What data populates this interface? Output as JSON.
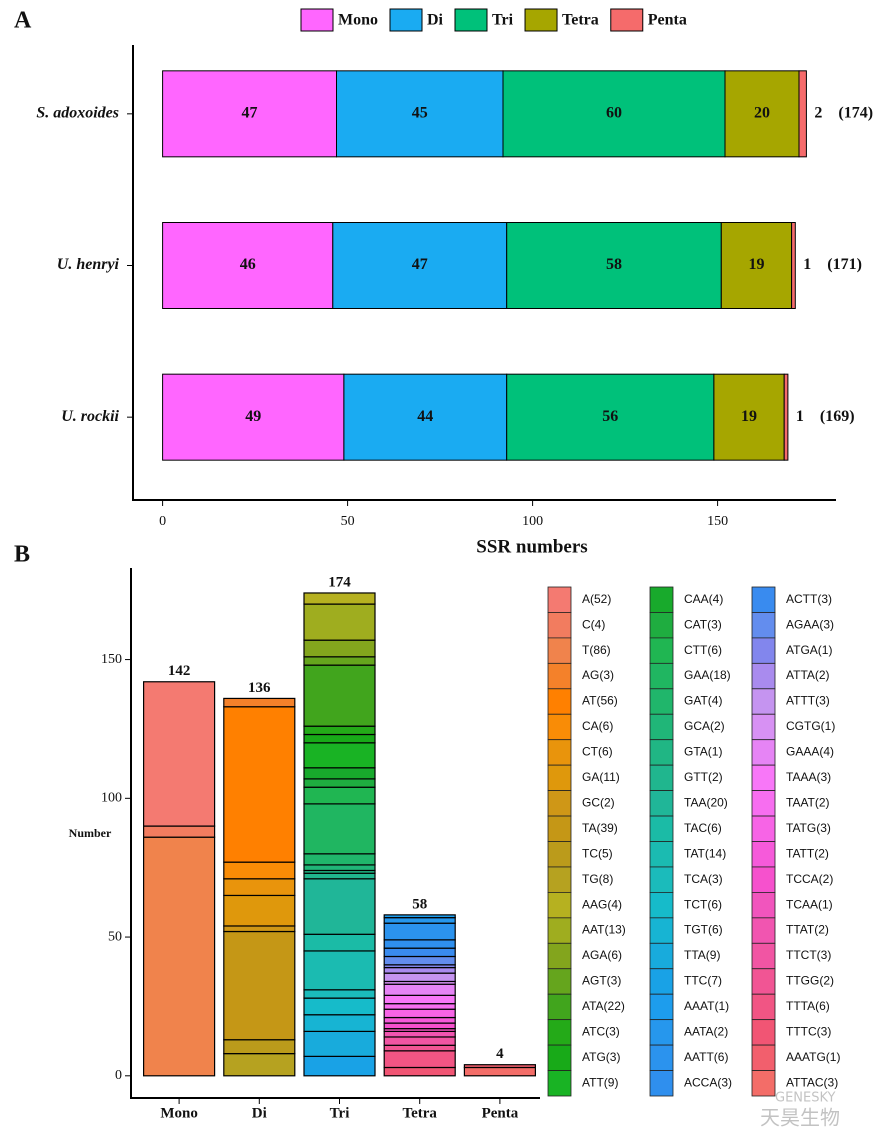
{
  "chart_data": [
    {
      "type": "stacked_barh",
      "panel": "A",
      "categories": [
        "S. adoxoides",
        "U. henryi",
        "U. rockii"
      ],
      "series": [
        {
          "name": "Mono",
          "color": "#ff66ff",
          "values": [
            47,
            46,
            49
          ]
        },
        {
          "name": "Di",
          "color": "#1aabf2",
          "values": [
            45,
            47,
            44
          ]
        },
        {
          "name": "Tri",
          "color": "#00c17a",
          "values": [
            60,
            58,
            56
          ]
        },
        {
          "name": "Tetra",
          "color": "#a6a600",
          "values": [
            20,
            19,
            19
          ]
        },
        {
          "name": "Penta",
          "color": "#f56b6b",
          "values": [
            2,
            1,
            1
          ]
        }
      ],
      "totals": [
        {
          "value": 174,
          "label": "(174)"
        },
        {
          "value": 171,
          "label": "(171)"
        },
        {
          "value": 169,
          "label": "(169)"
        }
      ],
      "xlabel": "SSR numbers",
      "xlim": [
        -8,
        182
      ],
      "xticks": [
        0,
        50,
        100,
        150
      ]
    },
    {
      "type": "stacked_bar",
      "panel": "B",
      "categories": [
        "Mono",
        "Di",
        "Tri",
        "Tetra",
        "Penta"
      ],
      "groups": [
        [
          {
            "label": "A(52)",
            "value": 52,
            "color": "hsl(4,85%,70%)"
          },
          {
            "label": "C(4)",
            "value": 4,
            "color": "hsl(12,85%,66%)"
          },
          {
            "label": "T(86)",
            "value": 86,
            "color": "hsl(20,85%,62%)"
          }
        ],
        [
          {
            "label": "AG(3)",
            "value": 3,
            "color": "hsl(26,90%,56%)"
          },
          {
            "label": "AT(56)",
            "value": 56,
            "color": "hsl(30,100%,50%)"
          },
          {
            "label": "CA(6)",
            "value": 6,
            "color": "hsl(33,95%,50%)"
          },
          {
            "label": "CT(6)",
            "value": 6,
            "color": "hsl(37,90%,48%)"
          },
          {
            "label": "GA(11)",
            "value": 11,
            "color": "hsl(40,90%,46%)"
          },
          {
            "label": "GC(2)",
            "value": 2,
            "color": "hsl(42,80%,45%)"
          },
          {
            "label": "TA(39)",
            "value": 39,
            "color": "hsl(44,80%,43%)"
          },
          {
            "label": "TC(5)",
            "value": 5,
            "color": "hsl(48,75%,42%)"
          },
          {
            "label": "TG(8)",
            "value": 8,
            "color": "hsl(52,70%,42%)"
          }
        ],
        [
          {
            "label": "AAG(4)",
            "value": 4,
            "color": "hsl(58,70%,42%)"
          },
          {
            "label": "AAT(13)",
            "value": 13,
            "color": "hsl(66,70%,40%)"
          },
          {
            "label": "AGA(6)",
            "value": 6,
            "color": "hsl(75,70%,38%)"
          },
          {
            "label": "AGT(3)",
            "value": 3,
            "color": "hsl(88,70%,38%)"
          },
          {
            "label": "ATA(22)",
            "value": 22,
            "color": "hsl(104,70%,38%)"
          },
          {
            "label": "ATC(3)",
            "value": 3,
            "color": "hsl(115,75%,38%)"
          },
          {
            "label": "ATG(3)",
            "value": 3,
            "color": "hsl(120,75%,38%)"
          },
          {
            "label": "ATT(9)",
            "value": 9,
            "color": "hsl(124,75%,40%)"
          },
          {
            "label": "CAA(4)",
            "value": 4,
            "color": "hsl(128,75%,38%)"
          },
          {
            "label": "CAT(3)",
            "value": 3,
            "color": "hsl(134,70%,40%)"
          },
          {
            "label": "CTT(6)",
            "value": 6,
            "color": "hsl(140,70%,42%)"
          },
          {
            "label": "GAA(18)",
            "value": 18,
            "color": "hsl(146,70%,42%)"
          },
          {
            "label": "GAT(4)",
            "value": 4,
            "color": "hsl(150,70%,42%)"
          },
          {
            "label": "GCA(2)",
            "value": 2,
            "color": "hsl(155,70%,42%)"
          },
          {
            "label": "GTA(1)",
            "value": 1,
            "color": "hsl(160,70%,42%)"
          },
          {
            "label": "GTT(2)",
            "value": 2,
            "color": "hsl(164,70%,42%)"
          },
          {
            "label": "TAA(20)",
            "value": 20,
            "color": "hsl(168,70%,42%)"
          },
          {
            "label": "TAC(6)",
            "value": 6,
            "color": "hsl(172,75%,42%)"
          },
          {
            "label": "TAT(14)",
            "value": 14,
            "color": "hsl(176,75%,42%)"
          },
          {
            "label": "TCA(3)",
            "value": 3,
            "color": "hsl(180,75%,42%)"
          },
          {
            "label": "TCT(6)",
            "value": 6,
            "color": "hsl(185,80%,44%)"
          },
          {
            "label": "TGT(6)",
            "value": 6,
            "color": "hsl(190,80%,46%)"
          },
          {
            "label": "TTA(9)",
            "value": 9,
            "color": "hsl(195,80%,48%)"
          },
          {
            "label": "TTC(7)",
            "value": 7,
            "color": "hsl(200,80%,50%)"
          }
        ],
        [
          {
            "label": "AAAT(1)",
            "value": 1,
            "color": "hsl(203,85%,52%)"
          },
          {
            "label": "AATA(2)",
            "value": 2,
            "color": "hsl(206,85%,54%)"
          },
          {
            "label": "AATT(6)",
            "value": 6,
            "color": "hsl(208,85%,55%)"
          },
          {
            "label": "ACCA(3)",
            "value": 3,
            "color": "hsl(210,85%,56%)"
          },
          {
            "label": "ACTT(3)",
            "value": 3,
            "color": "hsl(213,85%,58%)"
          },
          {
            "label": "AGAA(3)",
            "value": 3,
            "color": "hsl(222,80%,66%)"
          },
          {
            "label": "ATGA(1)",
            "value": 1,
            "color": "hsl(238,75%,72%)"
          },
          {
            "label": "ATTA(2)",
            "value": 2,
            "color": "hsl(258,75%,74%)"
          },
          {
            "label": "ATTT(3)",
            "value": 3,
            "color": "hsl(272,75%,76%)"
          },
          {
            "label": "CGTG(1)",
            "value": 1,
            "color": "hsl(283,80%,76%)"
          },
          {
            "label": "GAAA(4)",
            "value": 4,
            "color": "hsl(292,85%,74%)"
          },
          {
            "label": "TAAA(3)",
            "value": 3,
            "color": "hsl(300,90%,72%)"
          },
          {
            "label": "TAAT(2)",
            "value": 2,
            "color": "hsl(303,90%,70%)"
          },
          {
            "label": "TATG(3)",
            "value": 3,
            "color": "hsl(307,90%,68%)"
          },
          {
            "label": "TATT(2)",
            "value": 2,
            "color": "hsl(311,90%,66%)"
          },
          {
            "label": "TCCA(2)",
            "value": 2,
            "color": "hsl(315,90%,64%)"
          },
          {
            "label": "TCAA(1)",
            "value": 1,
            "color": "hsl(320,85%,64%)"
          },
          {
            "label": "TTAT(2)",
            "value": 2,
            "color": "hsl(325,85%,64%)"
          },
          {
            "label": "TTCT(3)",
            "value": 3,
            "color": "hsl(330,85%,64%)"
          },
          {
            "label": "TTGG(2)",
            "value": 2,
            "color": "hsl(336,85%,64%)"
          },
          {
            "label": "TTTA(6)",
            "value": 6,
            "color": "hsl(342,85%,64%)"
          },
          {
            "label": "TTTC(3)",
            "value": 3,
            "color": "hsl(348,85%,64%)"
          }
        ],
        [
          {
            "label": "AAATG(1)",
            "value": 1,
            "color": "hsl(354,85%,66%)"
          },
          {
            "label": "ATTAC(3)",
            "value": 3,
            "color": "hsl(2,85%,68%)"
          }
        ]
      ],
      "totals": [
        142,
        136,
        174,
        58,
        4
      ],
      "ylabel": "Number",
      "ylim": [
        -8,
        183
      ],
      "yticks": [
        0,
        50,
        100,
        150
      ]
    }
  ],
  "watermark": [
    "GENESKY",
    "天昊生物"
  ]
}
